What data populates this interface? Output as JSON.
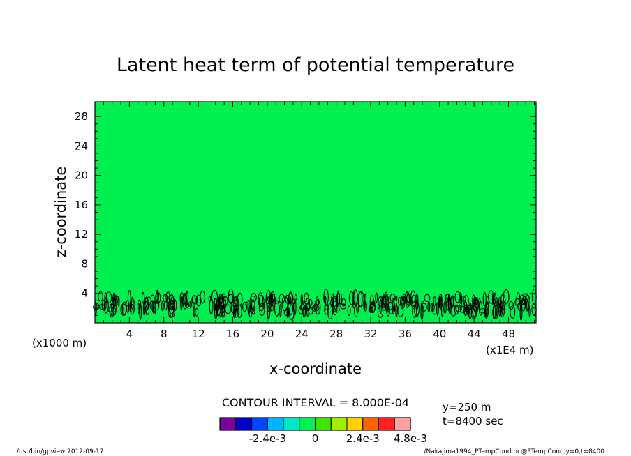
{
  "chart_data": {
    "type": "heatmap",
    "title": "Latent heat term of potential temperature",
    "xlabel": "x-coordinate",
    "ylabel": "z-coordinate",
    "x_scale_label": "(x1E4 m)",
    "y_scale_label": "(x1000 m)",
    "xlim": [
      0,
      51.2
    ],
    "ylim": [
      0,
      30
    ],
    "x_ticks": [
      4,
      8,
      12,
      16,
      20,
      24,
      28,
      32,
      36,
      40,
      44,
      48
    ],
    "y_ticks": [
      4,
      8,
      12,
      16,
      20,
      24,
      28
    ],
    "background_color": "#00F050",
    "contour_band_z": [
      1.4,
      3.6
    ],
    "contour_interval_text": "CONTOUR INTERVAL = 8.000E-04",
    "info_lines": [
      "y=250  m",
      "t=8400 sec"
    ],
    "colorbar": {
      "colors": [
        "#7C009C",
        "#0000CC",
        "#0044FF",
        "#00B4FF",
        "#00E6C8",
        "#00F050",
        "#3CE600",
        "#A0F000",
        "#FFD200",
        "#FF6400",
        "#FF2020",
        "#FFA0A0"
      ],
      "labels": [
        {
          "text": "-2.4e-3",
          "at": 3
        },
        {
          "text": "0",
          "at": 6
        },
        {
          "text": "2.4e-3",
          "at": 9
        },
        {
          "text": "4.8e-3",
          "at": 12
        }
      ]
    },
    "footer_left": "/usr/bin/gpview  2012-09-17",
    "footer_right": "./Nakajima1994_PTempCond.nc@PTempCond,y=0,t=8400"
  }
}
